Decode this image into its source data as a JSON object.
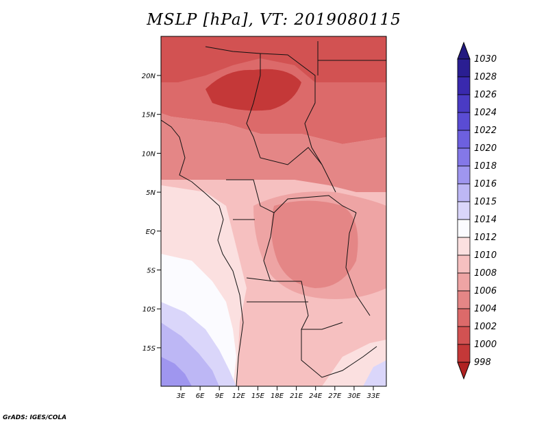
{
  "title": "MSLP [hPa], VT: 2019080115",
  "footer": "GrADS: IGES/COLA",
  "lat_labels": [
    "20N",
    "15N",
    "10N",
    "5N",
    "EQ",
    "5S",
    "10S",
    "15S"
  ],
  "lon_labels": [
    "3E",
    "6E",
    "9E",
    "12E",
    "15E",
    "18E",
    "21E",
    "24E",
    "27E",
    "30E",
    "33E"
  ],
  "colorbar": {
    "labels": [
      "1030",
      "1028",
      "1026",
      "1024",
      "1022",
      "1020",
      "1018",
      "1016",
      "1015",
      "1014",
      "1012",
      "1010",
      "1008",
      "1006",
      "1004",
      "1002",
      "1000",
      "998"
    ],
    "colors": [
      "#2a1e92",
      "#3929ae",
      "#4a3bc4",
      "#5a4cd4",
      "#6d60df",
      "#8478e8",
      "#9f96ef",
      "#bdb7f5",
      "#dad6fa",
      "#fbfbff",
      "#fbe0e0",
      "#f6c0c0",
      "#eea4a4",
      "#e48686",
      "#dc6a6a",
      "#d25252",
      "#c43838",
      "#b02222"
    ],
    "top_color": "#231a80"
  },
  "map": {
    "lat_range": [
      -19,
      25
    ],
    "lon_range": [
      0,
      35
    ],
    "field_colors": {
      "lowest": "#d25252",
      "very_low": "#dc6a6a",
      "low": "#e48686",
      "mid_low": "#eea4a4",
      "mid": "#f6c0c0",
      "mid_high": "#fbe0e0",
      "high": "#fbfbff",
      "higher": "#dad6fa",
      "highest": "#bdb7f5",
      "peak": "#9f96ef"
    }
  }
}
